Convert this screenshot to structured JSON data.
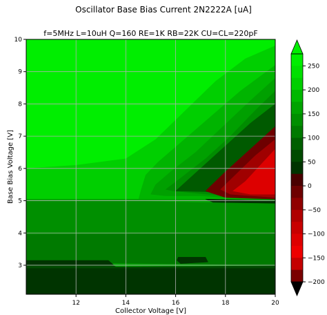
{
  "chart_data": {
    "type": "contourf",
    "title": "Oscillator Base Bias Current 2N2222A [uA]",
    "subtitle": "f=5MHz L=10uH Q=160 RE=1K RB=22K CU=CL=220pF",
    "xlabel": "Collector Voltage [V]",
    "ylabel": "Base Bias Voltage [V]",
    "xlim": [
      10,
      20
    ],
    "ylim": [
      2.1,
      10
    ],
    "x_ticks": [
      12,
      14,
      16,
      18,
      20
    ],
    "y_ticks": [
      3,
      4,
      5,
      6,
      7,
      8,
      9,
      10
    ],
    "grid": true,
    "colorbar": {
      "ticks": [
        250,
        200,
        150,
        100,
        50,
        0,
        -50,
        -100,
        -150,
        -200
      ],
      "levels": [
        275,
        250,
        225,
        200,
        175,
        150,
        125,
        100,
        75,
        50,
        25,
        0,
        -25,
        -50,
        -75,
        -100,
        -125,
        -150,
        -175,
        -200
      ],
      "band_colors": [
        "#00ee00",
        "#00e000",
        "#00cf00",
        "#00b800",
        "#00a300",
        "#008f00",
        "#007a00",
        "#005f00",
        "#004a00",
        "#003400",
        "#4a0000",
        "#6e0000",
        "#900000",
        "#b00000",
        "#c80000",
        "#dd0000",
        "#ee0000",
        "#c40000",
        "#7a0000"
      ],
      "extend_top_color": "#00ee00",
      "extend_bottom_color": "#000000"
    },
    "regions": [
      {
        "color": "#00ee00",
        "points": [
          [
            10,
            10
          ],
          [
            20,
            10
          ],
          [
            20,
            9.8
          ],
          [
            18.8,
            9.4
          ],
          [
            17.6,
            8.7
          ],
          [
            16.4,
            7.8
          ],
          [
            15.2,
            6.9
          ],
          [
            14.0,
            6.3
          ],
          [
            12,
            6.1
          ],
          [
            10,
            6.0
          ]
        ]
      },
      {
        "color": "#00d800",
        "points": [
          [
            20,
            9.8
          ],
          [
            20,
            9.5
          ],
          [
            18.9,
            9.0
          ],
          [
            17.8,
            8.3
          ],
          [
            16.6,
            7.4
          ],
          [
            15.4,
            6.6
          ],
          [
            14.2,
            6.2
          ],
          [
            20,
            5.0
          ],
          [
            16.0,
            7.2
          ]
        ]
      },
      {
        "color": "#00cf00",
        "points": [
          [
            20,
            9.8
          ],
          [
            18.8,
            9.4
          ],
          [
            17.6,
            8.7
          ],
          [
            16.4,
            7.8
          ],
          [
            15.2,
            6.9
          ],
          [
            14.0,
            6.3
          ],
          [
            12,
            6.1
          ],
          [
            10,
            6.0
          ],
          [
            10,
            5.0
          ],
          [
            14.5,
            5.0
          ],
          [
            14.6,
            5.3
          ],
          [
            14.8,
            5.8
          ],
          [
            15.3,
            6.2
          ],
          [
            16.2,
            6.8
          ],
          [
            17.4,
            7.6
          ],
          [
            18.6,
            8.4
          ],
          [
            20,
            9.2
          ]
        ]
      },
      {
        "color": "#00b400",
        "points": [
          [
            20,
            9.2
          ],
          [
            18.6,
            8.4
          ],
          [
            17.4,
            7.6
          ],
          [
            16.2,
            6.8
          ],
          [
            15.3,
            6.2
          ],
          [
            14.8,
            5.8
          ],
          [
            14.6,
            5.3
          ],
          [
            14.5,
            5.0
          ],
          [
            20,
            5.0
          ]
        ]
      },
      {
        "color": "#00a000",
        "points": [
          [
            20,
            8.8
          ],
          [
            19.0,
            8.1
          ],
          [
            17.9,
            7.3
          ],
          [
            16.8,
            6.5
          ],
          [
            15.8,
            5.9
          ],
          [
            15.2,
            5.5
          ],
          [
            15.0,
            5.2
          ],
          [
            15.6,
            5.15
          ],
          [
            17.0,
            5.15
          ],
          [
            20,
            5.0
          ]
        ]
      },
      {
        "color": "#008c00",
        "points": [
          [
            20,
            8.4
          ],
          [
            19.2,
            7.8
          ],
          [
            18.2,
            7.0
          ],
          [
            17.2,
            6.3
          ],
          [
            16.2,
            5.7
          ],
          [
            15.6,
            5.35
          ],
          [
            15.9,
            5.3
          ],
          [
            20,
            5.0
          ]
        ]
      },
      {
        "color": "#005a00",
        "points": [
          [
            20,
            8.0
          ],
          [
            19.0,
            7.4
          ],
          [
            18.0,
            6.7
          ],
          [
            17.0,
            6.0
          ],
          [
            16.0,
            5.3
          ],
          [
            17.2,
            5.28
          ],
          [
            20,
            5.15
          ]
        ]
      },
      {
        "color": "#6e0000",
        "points": [
          [
            20,
            7.3
          ],
          [
            19.0,
            6.6
          ],
          [
            18.0,
            5.9
          ],
          [
            17.2,
            5.3
          ],
          [
            18.0,
            5.1
          ],
          [
            20,
            5.05
          ]
        ]
      },
      {
        "color": "#a00000",
        "points": [
          [
            20,
            6.9
          ],
          [
            19.2,
            6.4
          ],
          [
            18.4,
            5.8
          ],
          [
            17.8,
            5.35
          ],
          [
            18.2,
            5.2
          ],
          [
            20,
            5.1
          ]
        ]
      },
      {
        "color": "#dd0000",
        "points": [
          [
            20,
            6.6
          ],
          [
            19.4,
            6.1
          ],
          [
            18.8,
            5.6
          ],
          [
            18.3,
            5.3
          ],
          [
            19.0,
            5.2
          ],
          [
            20,
            5.2
          ]
        ]
      },
      {
        "color": "#008f00",
        "points": [
          [
            10,
            5.0
          ],
          [
            14.5,
            5.0
          ],
          [
            17.0,
            4.95
          ],
          [
            20,
            4.95
          ],
          [
            20,
            4.0
          ],
          [
            10,
            3.95
          ]
        ]
      },
      {
        "color": "#00a300",
        "points": [
          [
            10,
            5.0
          ],
          [
            14.5,
            5.0
          ],
          [
            17.0,
            4.95
          ],
          [
            20,
            4.95
          ],
          [
            20,
            4.95
          ],
          [
            17.0,
            5.05
          ],
          [
            14.5,
            5.05
          ],
          [
            10,
            5.05
          ]
        ]
      },
      {
        "color": "#007a00",
        "points": [
          [
            10,
            3.95
          ],
          [
            20,
            4.0
          ],
          [
            20,
            3.0
          ],
          [
            10,
            3.1
          ]
        ]
      },
      {
        "color": "#004a00",
        "points": [
          [
            10,
            3.12
          ],
          [
            13.2,
            3.12
          ],
          [
            13.6,
            2.95
          ],
          [
            20,
            2.98
          ],
          [
            20,
            2.9
          ],
          [
            10,
            2.9
          ]
        ]
      },
      {
        "color": "#003400",
        "points": [
          [
            10,
            2.9
          ],
          [
            20,
            2.9
          ],
          [
            20,
            2.1
          ],
          [
            10,
            2.1
          ]
        ]
      },
      {
        "color": "#003400",
        "points": [
          [
            10,
            3.15
          ],
          [
            13.3,
            3.15
          ],
          [
            13.5,
            3.02
          ],
          [
            10,
            3.02
          ]
        ]
      },
      {
        "color": "#003400",
        "points": [
          [
            16.1,
            3.25
          ],
          [
            17.2,
            3.25
          ],
          [
            17.3,
            3.1
          ],
          [
            16.2,
            3.05
          ],
          [
            16.05,
            3.15
          ]
        ]
      },
      {
        "color": "#003000",
        "points": [
          [
            17.2,
            5.05
          ],
          [
            20,
            5.0
          ],
          [
            20,
            4.92
          ],
          [
            17.5,
            4.95
          ]
        ]
      }
    ]
  }
}
